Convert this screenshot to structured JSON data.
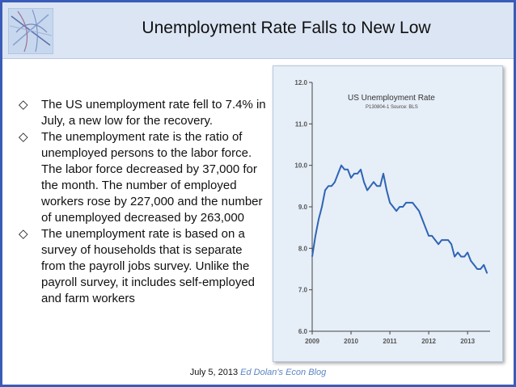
{
  "slide": {
    "title": "Unemployment Rate Falls to New Low",
    "bullets": [
      "The US unemployment rate fell to 7.4% in July, a new low for the recovery.",
      "The unemployment rate is the ratio of unemployed persons to the labor force. The labor force decreased by 37,000 for the month. The number of employed workers rose by 227,000 and the number of unemployed decreased by 263,000",
      "The unemployment rate is based on a survey of households that is separate from the payroll jobs survey. Unlike the payroll survey, it includes self-employed and farm workers"
    ],
    "bullet_icon": "◇",
    "footer": {
      "date": "July 5, 2013",
      "credit": "Ed Dolan's Econ Blog"
    }
  },
  "colors": {
    "slide_border": "#3a5cb8",
    "title_bar": "#dbe5f4",
    "chart_background": "#e6eef7",
    "chart_line": "#2e64b5",
    "footer_credit": "#5b84c4"
  },
  "chart_data": {
    "type": "line",
    "title": "US Unemployment Rate",
    "subtitle": "P130804-1 Source: BLS",
    "xlabel": "",
    "ylabel": "",
    "xlim": [
      2009,
      2013.58
    ],
    "ylim": [
      6.0,
      12.0
    ],
    "x_ticks": [
      2009,
      2010,
      2011,
      2012,
      2013
    ],
    "x_tick_labels": [
      "2009",
      "2010",
      "2011",
      "2012",
      "2013"
    ],
    "y_ticks": [
      6,
      7,
      8,
      9,
      10,
      11,
      12
    ],
    "y_tick_labels": [
      "6.0",
      "7.0",
      "8.0",
      "9.0",
      "10.0",
      "11.0",
      "12.0"
    ],
    "grid": false,
    "legend": "none",
    "series": [
      {
        "x": [
          2009.0,
          2009.083,
          2009.167,
          2009.25,
          2009.333,
          2009.417,
          2009.5,
          2009.583,
          2009.667,
          2009.75,
          2009.833,
          2009.917,
          2010.0,
          2010.083,
          2010.167,
          2010.25,
          2010.333,
          2010.417,
          2010.5,
          2010.583,
          2010.667,
          2010.75,
          2010.833,
          2010.917,
          2011.0,
          2011.083,
          2011.167,
          2011.25,
          2011.333,
          2011.417,
          2011.5,
          2011.583,
          2011.667,
          2011.75,
          2011.833,
          2011.917,
          2012.0,
          2012.083,
          2012.167,
          2012.25,
          2012.333,
          2012.417,
          2012.5,
          2012.583,
          2012.667,
          2012.75,
          2012.833,
          2012.917,
          2013.0,
          2013.083,
          2013.167,
          2013.25,
          2013.333,
          2013.417,
          2013.5
        ],
        "values": [
          7.8,
          8.3,
          8.7,
          9.0,
          9.4,
          9.5,
          9.5,
          9.6,
          9.8,
          10.0,
          9.9,
          9.9,
          9.7,
          9.8,
          9.8,
          9.9,
          9.6,
          9.4,
          9.5,
          9.6,
          9.5,
          9.5,
          9.8,
          9.4,
          9.1,
          9.0,
          8.9,
          9.0,
          9.0,
          9.1,
          9.1,
          9.1,
          9.0,
          8.9,
          8.7,
          8.5,
          8.3,
          8.3,
          8.2,
          8.1,
          8.2,
          8.2,
          8.2,
          8.1,
          7.8,
          7.9,
          7.8,
          7.8,
          7.9,
          7.7,
          7.6,
          7.5,
          7.5,
          7.6,
          7.4
        ]
      }
    ]
  }
}
